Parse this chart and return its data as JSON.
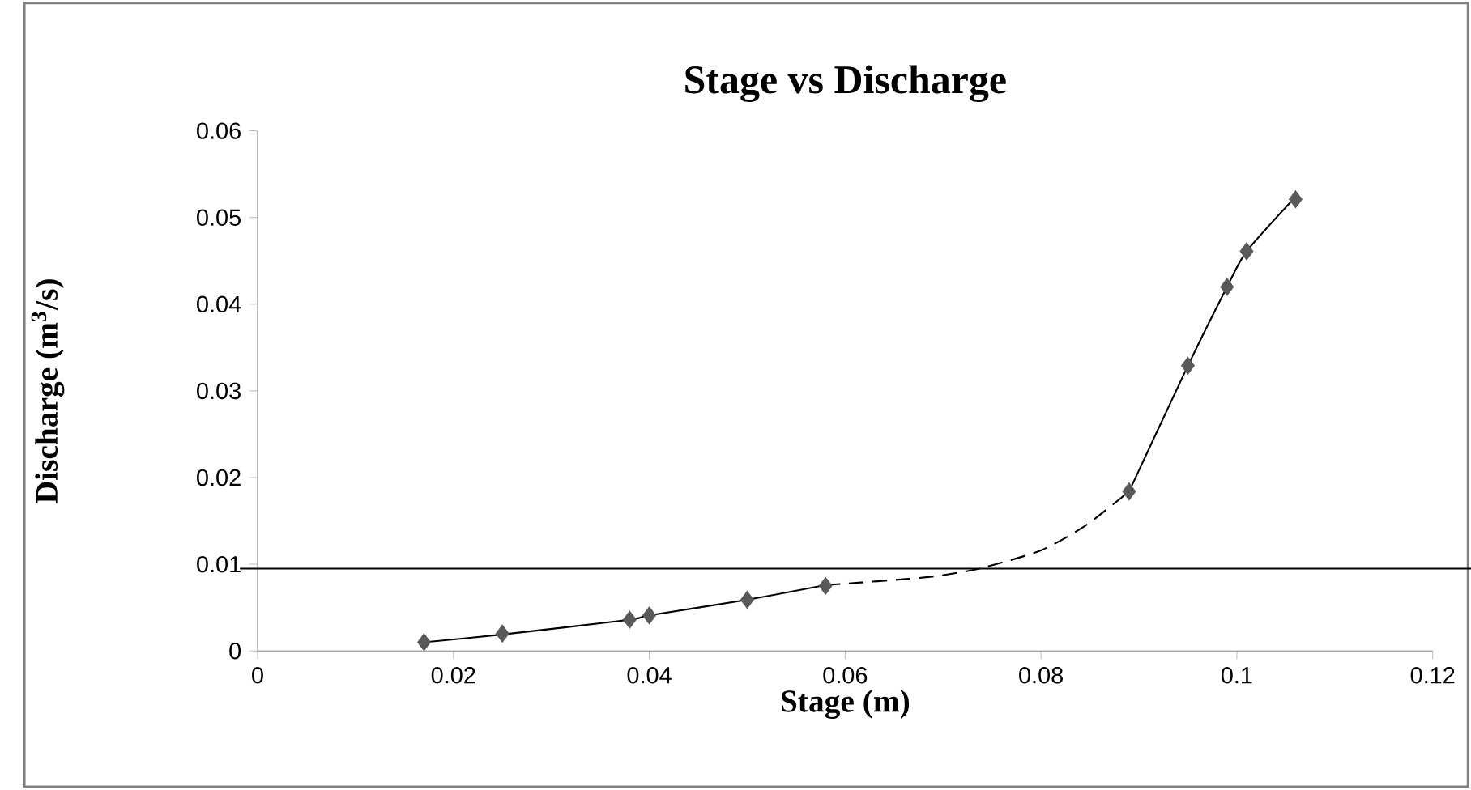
{
  "chart_data": {
    "type": "line",
    "title": "Stage vs Discharge",
    "xlabel": "Stage (m)",
    "ylabel": "Discharge (m$^{3}$/s)",
    "xlim": [
      0,
      0.12
    ],
    "ylim": [
      0,
      0.06
    ],
    "xticks": [
      0,
      0.02,
      0.04,
      0.06,
      0.08,
      0.1,
      0.12
    ],
    "yticks": [
      0,
      0.01,
      0.02,
      0.03,
      0.04,
      0.05,
      0.06
    ],
    "series": [
      {
        "color": "#000000",
        "line_style": "solid",
        "x": [
          0.017,
          0.025,
          0.038,
          0.04,
          0.05,
          0.058,
          null,
          0.089,
          0.095,
          0.099,
          0.101,
          0.106
        ],
        "values": [
          0.001,
          0.0019,
          0.0036,
          0.0041,
          0.0059,
          0.0076,
          null,
          0.0184,
          0.0329,
          0.042,
          0.0461,
          0.0524
        ]
      },
      {
        "color": "#000000",
        "line_style": "dashed",
        "x": [
          0.058,
          0.0683,
          0.0737,
          0.08,
          0.0846,
          0.089
        ],
        "values": [
          0.0076,
          0.0085,
          0.0095,
          0.0116,
          0.0145,
          0.0184
        ]
      },
      {
        "type": "scatter",
        "color": "#595959",
        "marker": "diamond",
        "x": [
          0.017,
          0.025,
          0.038,
          0.04,
          0.05,
          0.058,
          0.089,
          0.095,
          0.099,
          0.101,
          0.106
        ],
        "values": [
          0.001,
          0.002,
          0.0036,
          0.0041,
          0.0059,
          0.0075,
          0.0184,
          0.0329,
          0.042,
          0.0461,
          0.0521
        ]
      }
    ],
    "ref_lines": [
      {
        "axis": "y",
        "value": 0.0095,
        "color": "#000000"
      }
    ]
  }
}
